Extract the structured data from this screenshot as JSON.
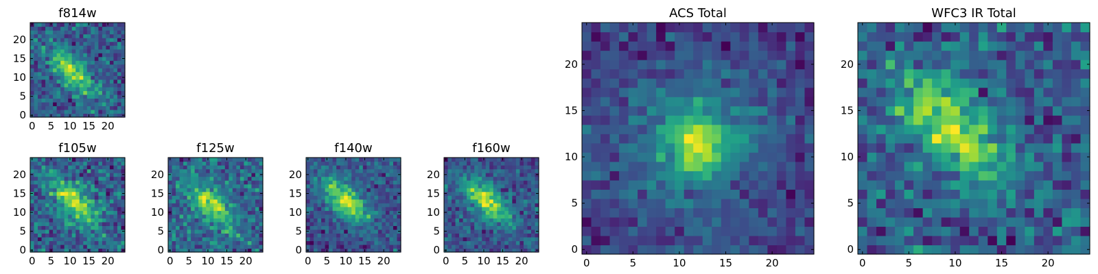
{
  "chart_data": [
    {
      "type": "heatmap",
      "title": "f814w",
      "grid_size": [
        25,
        25
      ],
      "x_ticks": [
        "0",
        "5",
        "10",
        "15",
        "20"
      ],
      "y_ticks": [
        "0",
        "5",
        "10",
        "15",
        "20"
      ],
      "colormap": "viridis",
      "source_center": [
        10.5,
        11.5
      ],
      "source_pattern": "diagonal streak from upper-left to center",
      "noise_level": "high"
    },
    {
      "type": "heatmap",
      "title": "f105w",
      "grid_size": [
        25,
        25
      ],
      "x_ticks": [
        "0",
        "5",
        "10",
        "15",
        "20"
      ],
      "y_ticks": [
        "0",
        "5",
        "10",
        "15",
        "20"
      ],
      "colormap": "viridis",
      "source_center": [
        11,
        13
      ],
      "source_pattern": "diagonal elongated blob",
      "noise_level": "high"
    },
    {
      "type": "heatmap",
      "title": "f125w",
      "grid_size": [
        25,
        25
      ],
      "x_ticks": [
        "0",
        "5",
        "10",
        "15",
        "20"
      ],
      "y_ticks": [
        "0",
        "5",
        "10",
        "15",
        "20"
      ],
      "colormap": "viridis",
      "source_center": [
        11,
        12
      ],
      "source_pattern": "faint diagonal blob",
      "noise_level": "high"
    },
    {
      "type": "heatmap",
      "title": "f140w",
      "grid_size": [
        25,
        25
      ],
      "x_ticks": [
        "0",
        "5",
        "10",
        "15",
        "20"
      ],
      "y_ticks": [
        "0",
        "5",
        "10",
        "15",
        "20"
      ],
      "colormap": "viridis",
      "source_center": [
        10,
        13
      ],
      "source_pattern": "broad diagonal blob",
      "noise_level": "medium"
    },
    {
      "type": "heatmap",
      "title": "f160w",
      "grid_size": [
        25,
        25
      ],
      "x_ticks": [
        "0",
        "5",
        "10",
        "15",
        "20"
      ],
      "y_ticks": [
        "0",
        "5",
        "10",
        "15",
        "20"
      ],
      "colormap": "viridis",
      "source_center": [
        11,
        13
      ],
      "source_pattern": "diagonal streak from upper-left to center",
      "noise_level": "medium"
    },
    {
      "type": "heatmap",
      "title": "ACS Total",
      "grid_size": [
        25,
        25
      ],
      "x_ticks": [
        "0",
        "5",
        "10",
        "15",
        "20"
      ],
      "y_ticks": [
        "0",
        "5",
        "10",
        "15",
        "20"
      ],
      "colormap": "viridis",
      "source_center": [
        12,
        11.5
      ],
      "source_pattern": "compact bright core with diffuse halo",
      "noise_level": "medium"
    },
    {
      "type": "heatmap",
      "title": "WFC3 IR Total",
      "grid_size": [
        25,
        25
      ],
      "x_ticks": [
        "0",
        "5",
        "10",
        "15",
        "20"
      ],
      "y_ticks": [
        "0",
        "5",
        "10",
        "15",
        "20"
      ],
      "colormap": "viridis",
      "source_center": [
        10,
        13
      ],
      "source_pattern": "broad diffuse diagonal emission",
      "noise_level": "high"
    }
  ]
}
